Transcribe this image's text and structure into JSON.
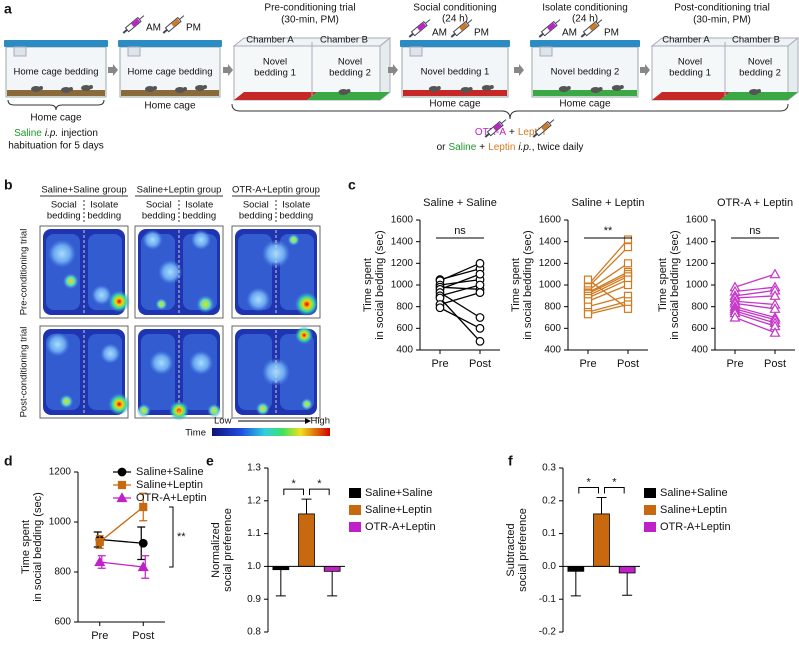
{
  "panel_labels": [
    "a",
    "b",
    "c",
    "d",
    "e",
    "f"
  ],
  "diagram": {
    "habituation_cage": {
      "bedding": "Home cage bedding",
      "label": "Home cage",
      "note": [
        "Saline",
        "i.p.",
        "injection",
        "habituation for 5 days"
      ]
    },
    "injection_cage": {
      "injections": [
        "AM",
        "PM"
      ],
      "bedding": "Home cage bedding",
      "label": "Home cage"
    },
    "pre_trial": {
      "title": [
        "Pre-conditioning trial",
        "(30-min, PM)"
      ],
      "chambers": [
        "Chamber A",
        "Chamber B"
      ],
      "beddings": [
        [
          "Novel",
          "bedding 1"
        ],
        [
          "Novel",
          "bedding 2"
        ]
      ]
    },
    "social": {
      "title": [
        "Social conditioning",
        "(24 h)"
      ],
      "injections": [
        "AM",
        "PM"
      ],
      "bedding": "Novel bedding 1",
      "label": "Home cage"
    },
    "isolate": {
      "title": [
        "Isolate conditioning",
        "(24 h)"
      ],
      "injections": [
        "AM",
        "PM"
      ],
      "bedding": "Novel bedding 2",
      "label": "Home cage"
    },
    "post_trial": {
      "title": [
        "Post-conditioning trial",
        "(30-min, PM)"
      ],
      "chambers": [
        "Chamber A",
        "Chamber B"
      ],
      "beddings": [
        [
          "Novel",
          "bedding 1"
        ],
        [
          "Novel",
          "bedding 2"
        ]
      ]
    },
    "treatment": [
      [
        "OTR-A",
        "+",
        "Leptin"
      ],
      [
        "or",
        "Saline",
        "+",
        "Leptin",
        "i.p.",
        ", twice daily"
      ]
    ]
  },
  "heatmaps": {
    "groups": [
      "Saline+Saline group",
      "Saline+Leptin group",
      "OTR-A+Leptin group"
    ],
    "zones": [
      [
        "Social",
        "bedding"
      ],
      [
        "Isolate",
        "bedding"
      ]
    ],
    "trials": [
      "Pre-conditioning trial",
      "Post-conditioning trial"
    ],
    "colorbar": {
      "title": "Time",
      "low": "Low",
      "high": "High"
    }
  },
  "chart_data": [
    {
      "type": "line",
      "title": "Saline + Saline",
      "ylabel": [
        "Time spent",
        "in social bedding (sec)"
      ],
      "categories": [
        "Pre",
        "Post"
      ],
      "ylim": [
        400,
        1600
      ],
      "yticks": [
        400,
        600,
        800,
        1000,
        1200,
        1400,
        1600
      ],
      "color": "#000000",
      "marker": "circle",
      "markers_open": true,
      "series": [
        {
          "values": [
            1050,
            1150
          ]
        },
        {
          "values": [
            1040,
            1200
          ]
        },
        {
          "values": [
            1000,
            1050
          ]
        },
        {
          "values": [
            980,
            960
          ]
        },
        {
          "values": [
            960,
            1100
          ]
        },
        {
          "values": [
            930,
            700
          ]
        },
        {
          "values": [
            900,
            1000
          ]
        },
        {
          "values": [
            880,
            480
          ]
        },
        {
          "values": [
            820,
            930
          ]
        },
        {
          "values": [
            790,
            600
          ]
        }
      ],
      "significance": [
        "ns"
      ]
    },
    {
      "type": "line",
      "title": "Saline + Leptin",
      "ylabel": [
        "Time spent",
        "in social bedding (sec)"
      ],
      "categories": [
        "Pre",
        "Post"
      ],
      "ylim": [
        400,
        1600
      ],
      "yticks": [
        400,
        600,
        800,
        1000,
        1200,
        1400,
        1600
      ],
      "color": "#d07a20",
      "marker": "square",
      "markers_open": true,
      "series": [
        {
          "values": [
            1000,
            1420
          ]
        },
        {
          "values": [
            980,
            1350
          ]
        },
        {
          "values": [
            950,
            1200
          ]
        },
        {
          "values": [
            930,
            1120
          ]
        },
        {
          "values": [
            920,
            1100
          ]
        },
        {
          "values": [
            900,
            1080
          ]
        },
        {
          "values": [
            880,
            1050
          ]
        },
        {
          "values": [
            850,
            1000
          ]
        },
        {
          "values": [
            800,
            900
          ]
        },
        {
          "values": [
            750,
            850
          ]
        },
        {
          "values": [
            730,
            820
          ]
        },
        {
          "values": [
            1050,
            780
          ]
        }
      ],
      "significance": [
        "**"
      ]
    },
    {
      "type": "line",
      "title": "OTR-A + Leptin",
      "ylabel": [
        "Time spent",
        "in social bedding (sec)"
      ],
      "categories": [
        "Pre",
        "Post"
      ],
      "ylim": [
        400,
        1600
      ],
      "yticks": [
        400,
        600,
        800,
        1000,
        1200,
        1400,
        1600
      ],
      "color": "#c535c8",
      "marker": "triangle",
      "markers_open": true,
      "series": [
        {
          "values": [
            980,
            1100
          ]
        },
        {
          "values": [
            940,
            980
          ]
        },
        {
          "values": [
            900,
            950
          ]
        },
        {
          "values": [
            880,
            900
          ]
        },
        {
          "values": [
            850,
            820
          ]
        },
        {
          "values": [
            830,
            780
          ]
        },
        {
          "values": [
            800,
            700
          ]
        },
        {
          "values": [
            780,
            680
          ]
        },
        {
          "values": [
            760,
            650
          ]
        },
        {
          "values": [
            740,
            620
          ]
        },
        {
          "values": [
            700,
            560
          ]
        }
      ],
      "significance": [
        "ns"
      ]
    },
    {
      "type": "line",
      "ylabel": [
        "Time spent",
        "in social bedding (sec)"
      ],
      "categories": [
        "Pre",
        "Post"
      ],
      "ylim": [
        600,
        1200
      ],
      "yticks": [
        600,
        800,
        1000,
        1200
      ],
      "legend": "top-right",
      "series": [
        {
          "name": "Saline+Saline",
          "color": "#000000",
          "marker": "circle",
          "values": [
            930,
            915
          ],
          "errors": [
            30,
            65
          ]
        },
        {
          "name": "Saline+Leptin",
          "color": "#c8680f",
          "marker": "square",
          "values": [
            920,
            1060
          ],
          "errors": [
            25,
            55
          ]
        },
        {
          "name": "OTR-A+Leptin",
          "color": "#c020c8",
          "marker": "triangle",
          "values": [
            840,
            820
          ],
          "errors": [
            25,
            45
          ]
        }
      ],
      "significance": [
        "**"
      ]
    },
    {
      "type": "bar",
      "ylabel": [
        "Normalized",
        "social preference"
      ],
      "ylim": [
        0.8,
        1.3
      ],
      "yticks": [
        0.8,
        0.9,
        {
          "value": 1,
          "label": "1.0"
        },
        1.1,
        1.2,
        1.3
      ],
      "baseline": 1,
      "legend": "right",
      "series": [
        {
          "name": "Saline+Saline",
          "color": "#000000",
          "values": [
            0.99
          ],
          "errors": [
            0.08
          ]
        },
        {
          "name": "Saline+Leptin",
          "color": "#c8680f",
          "values": [
            1.16
          ],
          "errors": [
            0.045
          ]
        },
        {
          "name": "OTR-A+Leptin",
          "color": "#c020c8",
          "values": [
            0.985
          ],
          "errors": [
            0.075
          ]
        }
      ],
      "significance": [
        "*",
        "*"
      ]
    },
    {
      "type": "bar",
      "ylabel": [
        "Subtracted",
        "social preference"
      ],
      "ylim": [
        -0.2,
        0.3
      ],
      "yticks": [
        -0.2,
        -0.1,
        {
          "value": 0,
          "label": "0.0"
        },
        0.1,
        0.2,
        0.3
      ],
      "baseline": 0,
      "legend": "right",
      "series": [
        {
          "name": "Saline+Saline",
          "color": "#000000",
          "values": [
            -0.015
          ],
          "errors": [
            0.075
          ]
        },
        {
          "name": "Saline+Leptin",
          "color": "#c8680f",
          "values": [
            0.16
          ],
          "errors": [
            0.05
          ]
        },
        {
          "name": "OTR-A+Leptin",
          "color": "#c020c8",
          "values": [
            -0.02
          ],
          "errors": [
            0.068
          ]
        }
      ],
      "significance": [
        "*",
        "*"
      ]
    }
  ]
}
